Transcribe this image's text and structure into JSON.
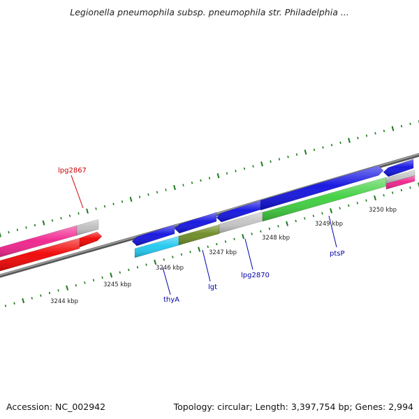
{
  "title": "Legionella pneumophila subsp. pneumophila str. Philadelphia ...",
  "footer": {
    "accession": "Accession: NC_002942",
    "summary": "Topology: circular; Length: 3,397,754 bp; Genes: 2,994"
  },
  "colors": {
    "backbone": "#777777",
    "tick": "#1a7a1a",
    "label_red": "#cc0000",
    "label_blue": "#0000aa"
  },
  "scale": {
    "unit": "kbp",
    "ticks": [
      {
        "label": "3244 kbp"
      },
      {
        "label": "3245 kbp"
      },
      {
        "label": "3246 kbp"
      },
      {
        "label": "3247 kbp"
      },
      {
        "label": "3248 kbp"
      },
      {
        "label": "3249 kbp"
      },
      {
        "label": "3250 kbp"
      }
    ]
  },
  "gene_labels": [
    {
      "name": "lpg2867",
      "color": "red"
    },
    {
      "name": "thyA",
      "color": "blue"
    },
    {
      "name": "lgt",
      "color": "blue"
    },
    {
      "name": "lpg2870",
      "color": "blue"
    },
    {
      "name": "ptsP",
      "color": "blue"
    }
  ],
  "features": {
    "outer_left": [
      {
        "name": "magenta-segment",
        "color": "#f0208c"
      },
      {
        "name": "grey-segment",
        "color": "#bfbfbf"
      }
    ],
    "inner_left": [
      {
        "name": "red-segment",
        "color": "#f00000"
      },
      {
        "name": "red-arrow",
        "color": "#f00000"
      }
    ],
    "outer_right": [
      {
        "name": "blue-arrow-1",
        "color": "#1010e0"
      },
      {
        "name": "blue-arrow-2",
        "color": "#1010e0"
      },
      {
        "name": "blue-arrow-3",
        "color": "#1010e0"
      },
      {
        "name": "blue-arrow-4",
        "color": "#1010e0"
      },
      {
        "name": "blue-arrow-5",
        "color": "#1010e0"
      }
    ],
    "inner_right": [
      {
        "name": "cyan-segment",
        "color": "#1ec8f0"
      },
      {
        "name": "olive-segment",
        "color": "#6b8a22"
      },
      {
        "name": "grey-segment",
        "color": "#c4c4c4"
      },
      {
        "name": "green-segment",
        "color": "#3ccf3c"
      },
      {
        "name": "magenta-segment",
        "color": "#f0208c"
      }
    ]
  }
}
